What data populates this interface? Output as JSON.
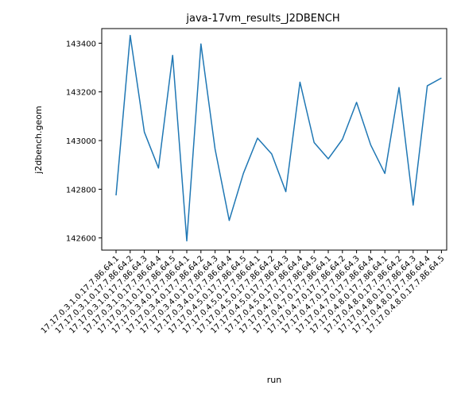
{
  "chart_data": {
    "type": "line",
    "title": "java-17vm_results_J2DBENCH",
    "xlabel": "run",
    "ylabel": "j2dbench.geom",
    "categories": [
      "17.17.0.3.1.0.17.7.86.64.1",
      "17.17.0.3.1.0.17.7.86.64.2",
      "17.17.0.3.1.0.17.7.86.64.3",
      "17.17.0.3.1.0.17.7.86.64.4",
      "17.17.0.3.1.0.17.7.86.64.5",
      "17.17.0.3.4.0.17.7.86.64.1",
      "17.17.0.3.4.0.17.7.86.64.2",
      "17.17.0.3.4.0.17.7.86.64.3",
      "17.17.0.3.4.0.17.7.86.64.4",
      "17.17.0.4.5.0.17.7.86.64.5",
      "17.17.0.4.5.0.17.7.86.64.1",
      "17.17.0.4.5.0.17.7.86.64.2",
      "17.17.0.4.5.0.17.7.86.64.3",
      "17.17.0.4.5.0.17.7.86.64.4",
      "17.17.0.4.7.0.17.7.86.64.5",
      "17.17.0.4.7.0.17.7.86.64.1",
      "17.17.0.4.7.0.17.7.86.64.2",
      "17.17.0.4.7.0.17.7.86.64.3",
      "17.17.0.4.7.0.17.7.86.64.4",
      "17.17.0.4.8.0.17.7.86.64.1",
      "17.17.0.4.8.0.17.7.86.64.2",
      "17.17.0.4.8.0.17.7.86.64.3",
      "17.17.0.4.8.0.17.7.86.64.4",
      "17.17.0.4.8.0.17.7.86.64.5"
    ],
    "series": [
      {
        "values": [
          142775,
          143432,
          143035,
          142887,
          143350,
          142588,
          143397,
          142965,
          142672,
          142865,
          143010,
          142945,
          142790,
          143240,
          142992,
          142925,
          143005,
          143157,
          142982,
          142865,
          143218,
          142735,
          143225,
          143257
        ]
      }
    ],
    "ylim": [
      142550,
      143460
    ],
    "yticks": [
      142600,
      142800,
      143000,
      143200,
      143400
    ],
    "grid": false,
    "colors": {
      "line": "#1f77b4",
      "axis": "#000000"
    }
  }
}
